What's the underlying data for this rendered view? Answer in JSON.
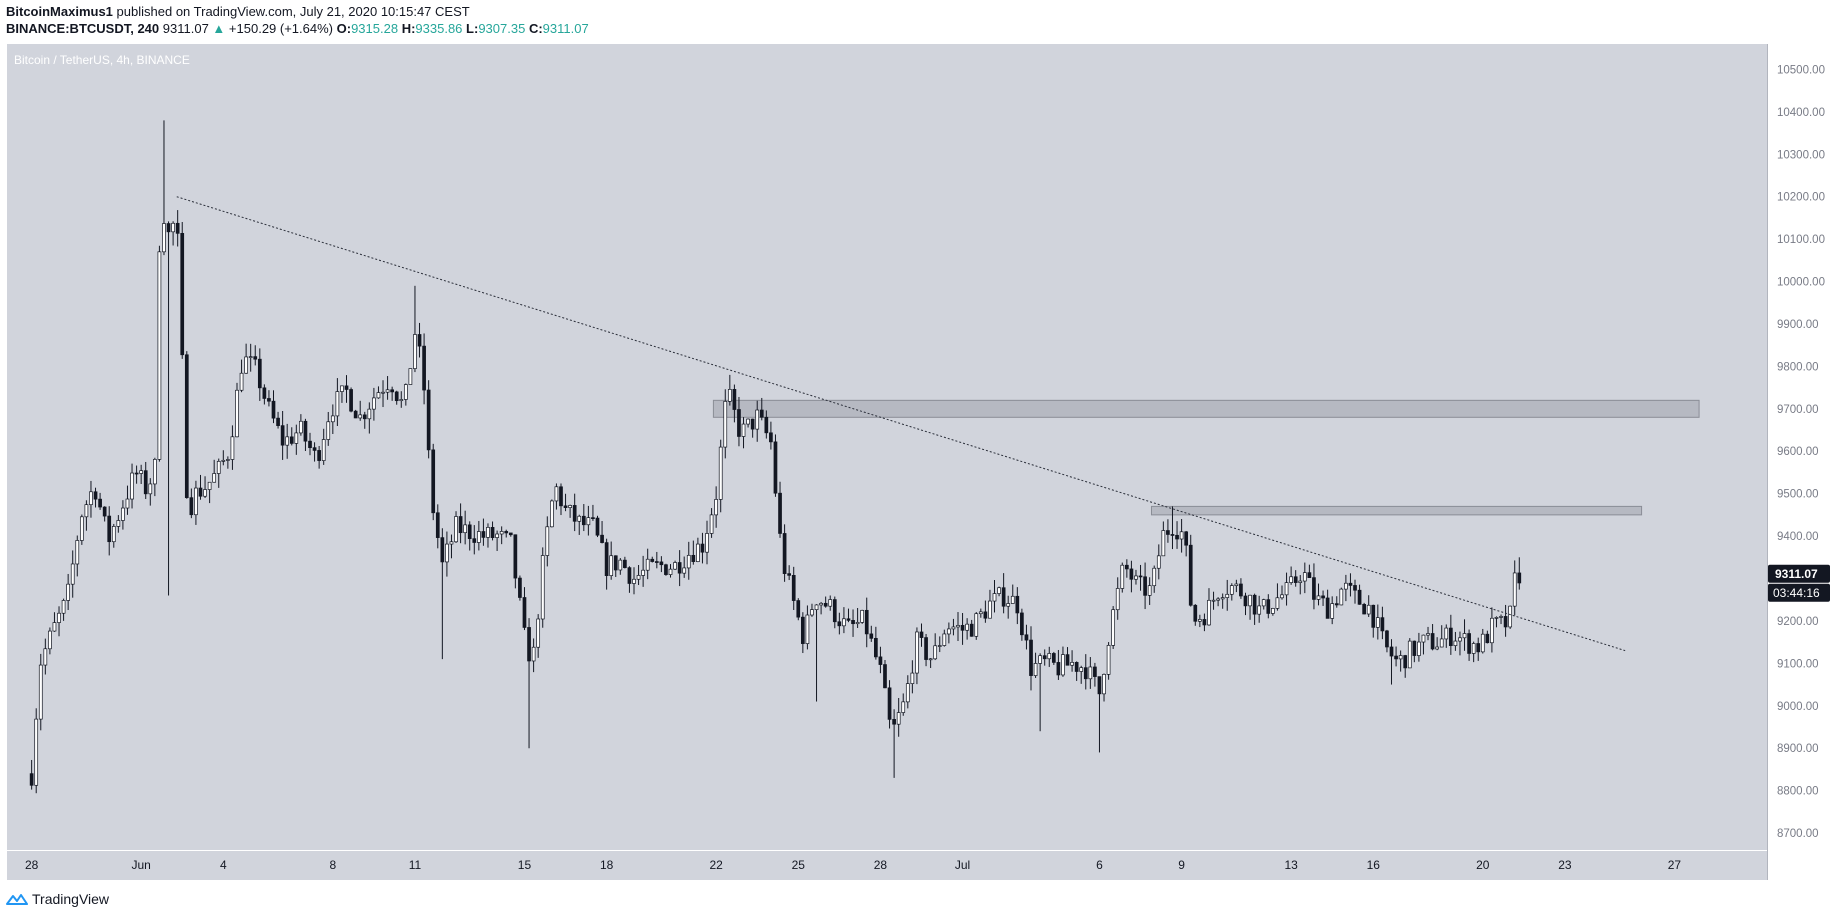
{
  "header": {
    "author": "BitcoinMaximus1",
    "published_text": "published on TradingView.com, July 21, 2020 10:15:47 CEST",
    "symbol": "BINANCE:BTCUSDT, 240",
    "last": "9311.07",
    "change_arrow": "▲",
    "change": "+150.29 (+1.64%)",
    "open_label": "O:",
    "open": "9315.28",
    "high_label": "H:",
    "high": "9335.86",
    "low_label": "L:",
    "low": "9307.35",
    "close_label": "C:",
    "close": "9311.07"
  },
  "footer": {
    "brand": "TradingView",
    "logo_icon": "tradingview-logo-icon"
  },
  "chart_data": {
    "type": "candlestick",
    "title": "Bitcoin / TetherUS, 4h, BINANCE",
    "ylim": [
      8660,
      10560
    ],
    "y_ticks": [
      "10500.00",
      "10400.00",
      "10300.00",
      "10200.00",
      "10100.00",
      "10000.00",
      "9900.00",
      "9800.00",
      "9700.00",
      "9600.00",
      "9500.00",
      "9400.00",
      "9300.00",
      "9200.00",
      "9100.00",
      "9000.00",
      "8900.00",
      "8800.00",
      "8700.00"
    ],
    "x_ticks": [
      {
        "label": "28",
        "day": 0
      },
      {
        "label": "Jun",
        "day": 4
      },
      {
        "label": "4",
        "day": 7
      },
      {
        "label": "8",
        "day": 11
      },
      {
        "label": "11",
        "day": 14
      },
      {
        "label": "15",
        "day": 18
      },
      {
        "label": "18",
        "day": 21
      },
      {
        "label": "22",
        "day": 25
      },
      {
        "label": "25",
        "day": 28
      },
      {
        "label": "28",
        "day": 31
      },
      {
        "label": "Jul",
        "day": 34
      },
      {
        "label": "6",
        "day": 39
      },
      {
        "label": "9",
        "day": 42
      },
      {
        "label": "13",
        "day": 46
      },
      {
        "label": "16",
        "day": 49
      },
      {
        "label": "20",
        "day": 53
      },
      {
        "label": "23",
        "day": 56
      },
      {
        "label": "27",
        "day": 60
      }
    ],
    "x_start_day": -0.9,
    "last_candle_day": 54.38,
    "price_label": "9311.07",
    "countdown_label": "03:44:16",
    "background": "#d1d4dc",
    "up_color": "#ffffff",
    "down_color": "#131722",
    "trendline": {
      "from": {
        "day": 5.3,
        "price": 10200
      },
      "to": {
        "day": 58.2,
        "price": 9130
      }
    },
    "zones": [
      {
        "from_day": 24.9,
        "to_day": 60.9,
        "top": 9720,
        "bottom": 9680
      },
      {
        "from_day": 40.9,
        "to_day": 58.8,
        "top": 9470,
        "bottom": 9450
      }
    ],
    "close_anchors": [
      [
        0,
        8840
      ],
      [
        0.3,
        9100
      ],
      [
        0.8,
        9180
      ],
      [
        1.3,
        9250
      ],
      [
        1.8,
        9450
      ],
      [
        2.3,
        9520
      ],
      [
        2.8,
        9390
      ],
      [
        3.3,
        9470
      ],
      [
        3.8,
        9550
      ],
      [
        4.2,
        9510
      ],
      [
        4.5,
        9560
      ],
      [
        4.7,
        10200
      ],
      [
        5.0,
        10110
      ],
      [
        5.3,
        10150
      ],
      [
        5.7,
        9460
      ],
      [
        6.0,
        9500
      ],
      [
        6.4,
        9520
      ],
      [
        6.8,
        9550
      ],
      [
        7.2,
        9600
      ],
      [
        7.7,
        9820
      ],
      [
        8.2,
        9790
      ],
      [
        8.7,
        9690
      ],
      [
        9.2,
        9620
      ],
      [
        9.8,
        9650
      ],
      [
        10.4,
        9580
      ],
      [
        10.9,
        9700
      ],
      [
        11.5,
        9740
      ],
      [
        12.0,
        9680
      ],
      [
        12.6,
        9740
      ],
      [
        13.1,
        9770
      ],
      [
        13.6,
        9700
      ],
      [
        14.0,
        9880
      ],
      [
        14.3,
        9780
      ],
      [
        14.6,
        9490
      ],
      [
        15.0,
        9330
      ],
      [
        15.5,
        9420
      ],
      [
        16.0,
        9410
      ],
      [
        16.5,
        9400
      ],
      [
        17.0,
        9400
      ],
      [
        17.5,
        9380
      ],
      [
        18.0,
        9160
      ],
      [
        18.3,
        9100
      ],
      [
        18.7,
        9350
      ],
      [
        19.1,
        9520
      ],
      [
        19.5,
        9460
      ],
      [
        20.0,
        9430
      ],
      [
        20.5,
        9420
      ],
      [
        21.0,
        9330
      ],
      [
        21.5,
        9340
      ],
      [
        22.0,
        9300
      ],
      [
        22.5,
        9320
      ],
      [
        23.0,
        9330
      ],
      [
        23.5,
        9330
      ],
      [
        24.0,
        9360
      ],
      [
        24.5,
        9380
      ],
      [
        25.0,
        9500
      ],
      [
        25.4,
        9740
      ],
      [
        25.9,
        9640
      ],
      [
        26.5,
        9680
      ],
      [
        27.0,
        9620
      ],
      [
        27.4,
        9350
      ],
      [
        27.8,
        9250
      ],
      [
        28.2,
        9160
      ],
      [
        28.6,
        9260
      ],
      [
        29.2,
        9230
      ],
      [
        29.8,
        9180
      ],
      [
        30.4,
        9200
      ],
      [
        31.0,
        9080
      ],
      [
        31.4,
        8930
      ],
      [
        31.9,
        9010
      ],
      [
        32.3,
        9150
      ],
      [
        32.9,
        9110
      ],
      [
        33.4,
        9190
      ],
      [
        34.0,
        9180
      ],
      [
        34.4,
        9190
      ],
      [
        35.0,
        9240
      ],
      [
        35.5,
        9260
      ],
      [
        36.0,
        9240
      ],
      [
        36.5,
        9090
      ],
      [
        37.0,
        9100
      ],
      [
        37.5,
        9090
      ],
      [
        38.0,
        9100
      ],
      [
        38.5,
        9090
      ],
      [
        39.0,
        9030
      ],
      [
        39.4,
        9190
      ],
      [
        39.9,
        9330
      ],
      [
        40.4,
        9280
      ],
      [
        40.9,
        9270
      ],
      [
        41.3,
        9400
      ],
      [
        41.7,
        9430
      ],
      [
        42.1,
        9400
      ],
      [
        42.4,
        9200
      ],
      [
        42.9,
        9220
      ],
      [
        43.4,
        9280
      ],
      [
        43.9,
        9280
      ],
      [
        44.4,
        9260
      ],
      [
        44.9,
        9220
      ],
      [
        45.4,
        9250
      ],
      [
        45.9,
        9270
      ],
      [
        46.4,
        9320
      ],
      [
        46.9,
        9250
      ],
      [
        47.4,
        9230
      ],
      [
        47.9,
        9280
      ],
      [
        48.4,
        9250
      ],
      [
        48.9,
        9230
      ],
      [
        49.4,
        9140
      ],
      [
        49.9,
        9100
      ],
      [
        50.4,
        9130
      ],
      [
        50.9,
        9150
      ],
      [
        51.4,
        9150
      ],
      [
        51.9,
        9170
      ],
      [
        52.4,
        9150
      ],
      [
        52.9,
        9140
      ],
      [
        53.4,
        9190
      ],
      [
        53.8,
        9190
      ],
      [
        54.0,
        9210
      ],
      [
        54.2,
        9310
      ],
      [
        54.38,
        9311
      ]
    ],
    "spikes": [
      {
        "day": 4.75,
        "high": 10380
      },
      {
        "day": 5.05,
        "low": 9260
      },
      {
        "day": 14.0,
        "high": 9990
      },
      {
        "day": 15.0,
        "low": 9110
      },
      {
        "day": 18.2,
        "low": 8900
      },
      {
        "day": 25.5,
        "high": 9780
      },
      {
        "day": 28.6,
        "low": 9010
      },
      {
        "day": 31.5,
        "low": 8830
      },
      {
        "day": 36.9,
        "low": 8940
      },
      {
        "day": 39.0,
        "low": 8890
      },
      {
        "day": 41.6,
        "high": 9470
      },
      {
        "day": 49.6,
        "low": 9050
      },
      {
        "day": 54.25,
        "high": 9350
      }
    ]
  }
}
